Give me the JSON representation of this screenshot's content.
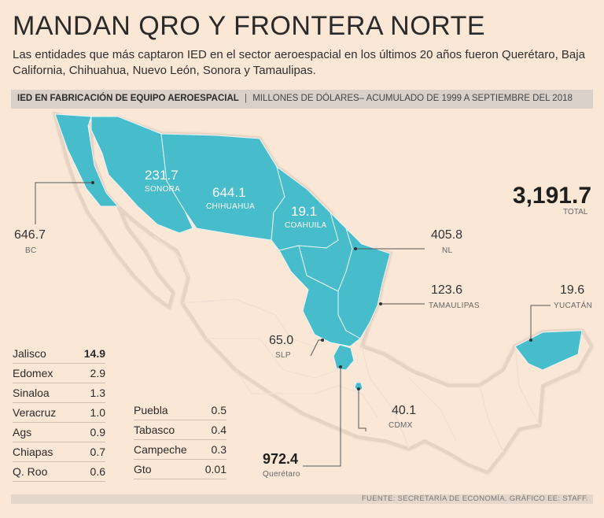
{
  "title": "MANDAN QRO Y FRONTERA NORTE",
  "subtitle": "Las entidades que más captaron IED en el sector aeroespacial en los últimos 20 años fueron Querétaro, Baja California, Chihuahua, Nuevo León, Sonora y Tamaulipas.",
  "bar": {
    "bold": "IED EN FABRICACIÓN DE EQUIPO AEROESPACIAL",
    "separator": "|",
    "normal": "MILLONES DE DÓLARES– ACUMULADO DE 1999 A SEPTIEMBRE DEL 2018"
  },
  "colors": {
    "highlight": "#47bccb",
    "land": "#fbe7d6",
    "border": "#e3d2c4",
    "background": "#fbe7d6"
  },
  "total": {
    "value": "3,191.7",
    "label": "TOTAL"
  },
  "map_labels": {
    "sonora": {
      "value": "231.7",
      "name": "SONORA"
    },
    "chihuahua": {
      "value": "644.1",
      "name": "CHIHUAHUA"
    },
    "coahuila": {
      "value": "19.1",
      "name": "COAHUILA"
    },
    "bc": {
      "value": "646.7",
      "name": "BC"
    },
    "nl": {
      "value": "405.8",
      "name": "NL"
    },
    "tamaulipas": {
      "value": "123.6",
      "name": "TAMAULIPAS"
    },
    "yucatan": {
      "value": "19.6",
      "name": "YUCATÁN"
    },
    "slp": {
      "value": "65.0",
      "name": "SLP"
    },
    "cdmx": {
      "value": "40.1",
      "name": "CDMX"
    },
    "queretaro": {
      "value": "972.4",
      "name": "Querétaro"
    }
  },
  "list_left": [
    {
      "name": "Jalisco",
      "value": "14.9"
    },
    {
      "name": "Edomex",
      "value": "2.9"
    },
    {
      "name": "Sinaloa",
      "value": "1.3"
    },
    {
      "name": "Veracruz",
      "value": "1.0"
    },
    {
      "name": "Ags",
      "value": "0.9"
    },
    {
      "name": "Chiapas",
      "value": "0.7"
    },
    {
      "name": "Q. Roo",
      "value": "0.6"
    }
  ],
  "list_right": [
    {
      "name": "Puebla",
      "value": "0.5"
    },
    {
      "name": "Tabasco",
      "value": "0.4"
    },
    {
      "name": "Campeche",
      "value": "0.3"
    },
    {
      "name": "Gto",
      "value": "0.01"
    }
  ],
  "footer": "FUENTE: SECRETARÍA DE ECONOMÍA. GRÁFICO EE: STAFF."
}
